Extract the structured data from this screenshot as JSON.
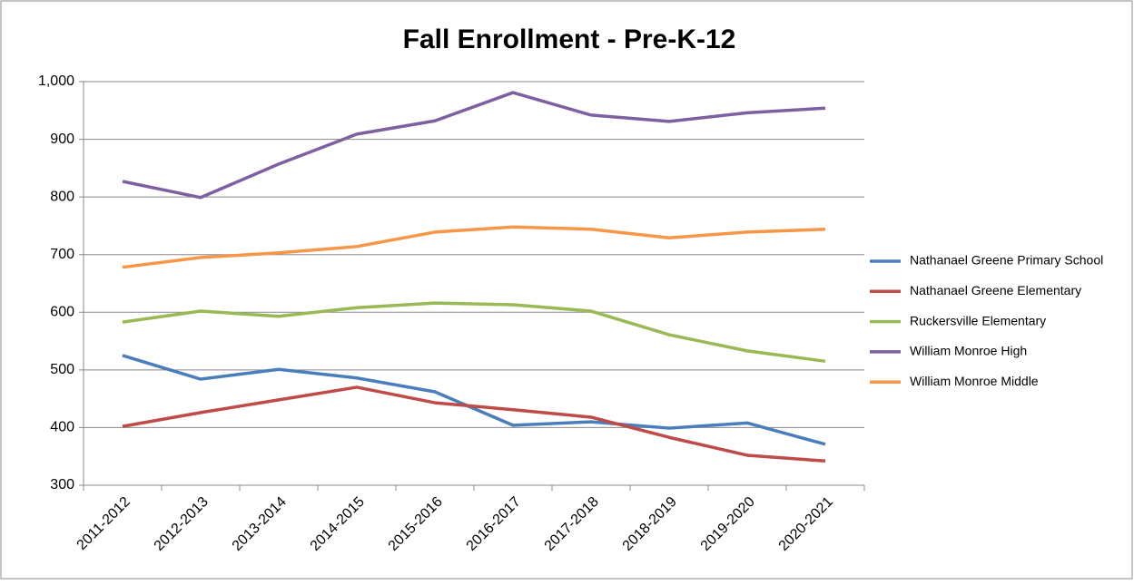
{
  "chart_data": {
    "type": "line",
    "title": "Fall Enrollment - Pre-K-12",
    "categories": [
      "2011-2012",
      "2012-2013",
      "2013-2014",
      "2014-2015",
      "2015-2016",
      "2016-2017",
      "2017-2018",
      "2018-2019",
      "2019-2020",
      "2020-2021"
    ],
    "series": [
      {
        "name": "Nathanael Greene Primary School",
        "color": "#4a7ebb",
        "values": [
          525,
          484,
          501,
          486,
          462,
          404,
          410,
          399,
          408,
          371
        ]
      },
      {
        "name": "Nathanael Greene Elementary",
        "color": "#be4b48",
        "values": [
          402,
          426,
          448,
          470,
          443,
          431,
          418,
          383,
          352,
          342
        ]
      },
      {
        "name": "Ruckersville Elementary",
        "color": "#98b954",
        "values": [
          583,
          602,
          593,
          608,
          616,
          613,
          602,
          561,
          533,
          515
        ]
      },
      {
        "name": "William Monroe High",
        "color": "#7d60a0",
        "values": [
          827,
          799,
          857,
          909,
          932,
          981,
          942,
          931,
          946,
          954
        ]
      },
      {
        "name": "William Monroe Middle",
        "color": "#f79646",
        "values": [
          678,
          695,
          703,
          714,
          739,
          748,
          744,
          729,
          739,
          744
        ]
      }
    ],
    "ylim": [
      300,
      1000
    ],
    "yticks": [
      300,
      400,
      500,
      600,
      700,
      800,
      900,
      {
        "value": 1000,
        "label": "1,000"
      }
    ],
    "grid": true,
    "legend": "right"
  }
}
